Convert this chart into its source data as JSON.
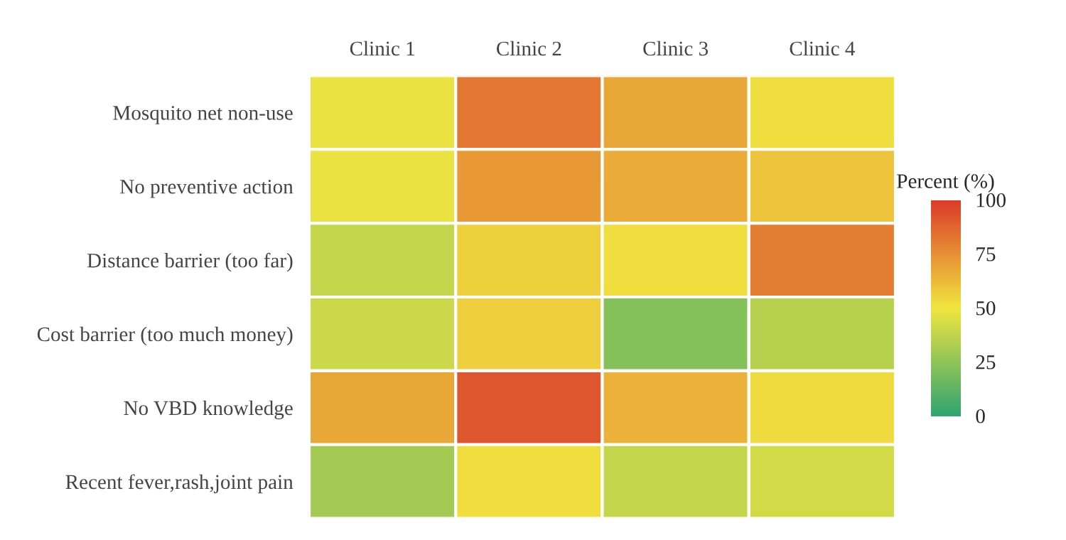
{
  "chart_data": {
    "type": "heatmap",
    "categories": [
      "Clinic 1",
      "Clinic 2",
      "Clinic 3",
      "Clinic 4"
    ],
    "y_categories": [
      "Mosquito net non-use",
      "No preventive action",
      "Distance barrier (too far)",
      "Cost barrier (too much money)",
      "No VBD knowledge",
      "Recent fever,rash,joint pain"
    ],
    "cells": [
      [
        48,
        82,
        68,
        52
      ],
      [
        48,
        72,
        67,
        60
      ],
      [
        38,
        56,
        52,
        80
      ],
      [
        40,
        57,
        22,
        35
      ],
      [
        68,
        92,
        65,
        53
      ],
      [
        30,
        52,
        38,
        42
      ]
    ],
    "clabel": "Percent (%)",
    "clim": [
      0,
      100
    ],
    "cticks": [
      0,
      25,
      50,
      75,
      100
    ],
    "colors": [
      "#31a470",
      "#f1e53f",
      "#dc3a2a"
    ]
  }
}
